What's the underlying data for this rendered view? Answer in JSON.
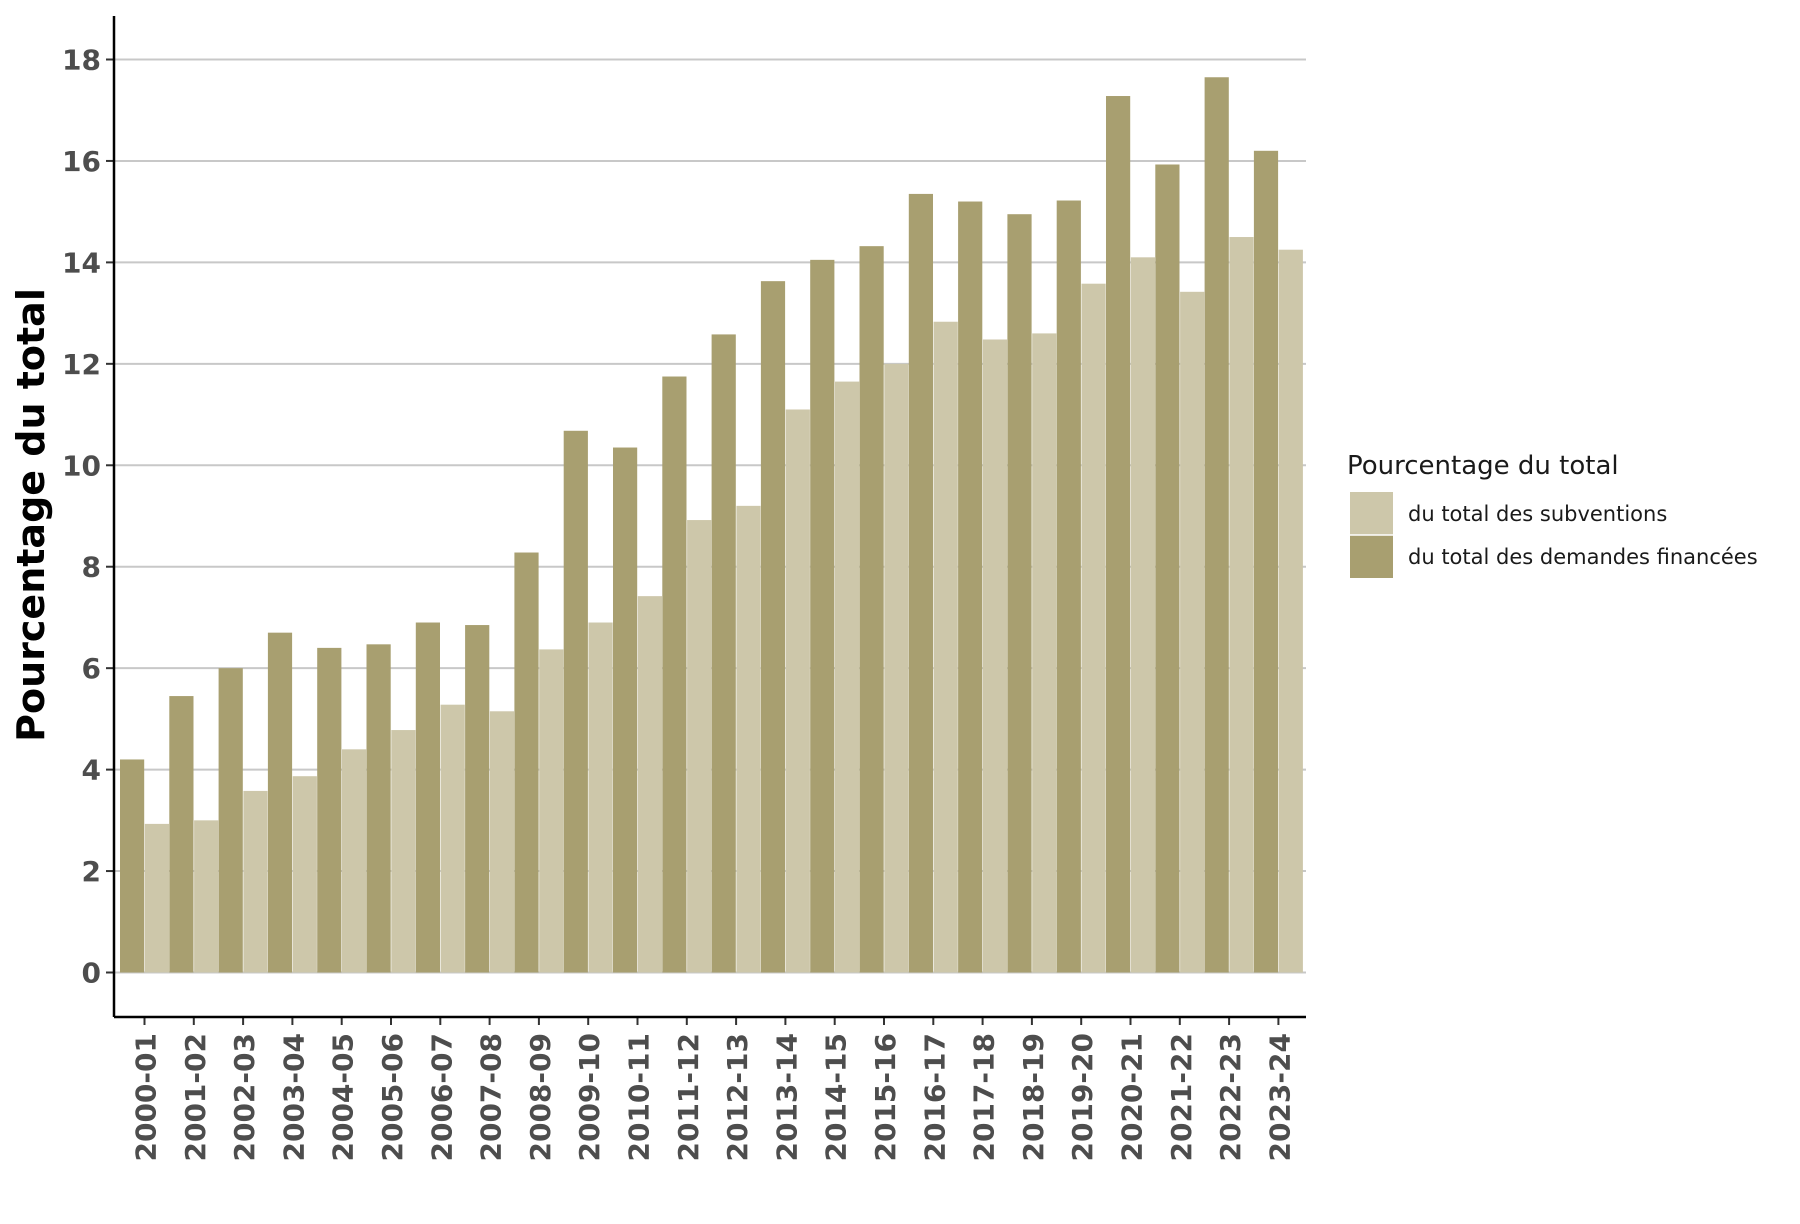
{
  "chart_data": {
    "type": "bar",
    "title": "",
    "xlabel": "",
    "ylabel": "Pourcentage du total",
    "ylim": [
      -0.9,
      18.9
    ],
    "yticks": [
      0,
      2,
      4,
      6,
      8,
      10,
      12,
      14,
      16,
      18
    ],
    "grid": "horizontal",
    "legend": {
      "title": "Pourcentage du total",
      "position": "right"
    },
    "categories": [
      "2000-01",
      "2001-02",
      "2002-03",
      "2003-04",
      "2004-05",
      "2005-06",
      "2006-07",
      "2007-08",
      "2008-09",
      "2009-10",
      "2010-11",
      "2011-12",
      "2012-13",
      "2013-14",
      "2014-15",
      "2015-16",
      "2016-17",
      "2017-18",
      "2018-19",
      "2019-20",
      "2020-21",
      "2021-22",
      "2022-23",
      "2023-24"
    ],
    "series": [
      {
        "name": "du total des demandes financées",
        "color": "#a89f70",
        "values": [
          4.2,
          5.45,
          6.0,
          6.7,
          6.4,
          6.47,
          6.9,
          6.85,
          8.28,
          10.68,
          10.35,
          11.75,
          12.58,
          13.63,
          14.05,
          14.32,
          15.35,
          15.2,
          14.95,
          15.22,
          17.28,
          15.93,
          17.65,
          16.2
        ]
      },
      {
        "name": "du total des subventions",
        "color": "#cdc7aa",
        "values": [
          2.93,
          3.0,
          3.58,
          3.87,
          4.4,
          4.78,
          5.28,
          5.15,
          6.37,
          6.9,
          7.42,
          8.92,
          9.2,
          11.1,
          11.65,
          12.0,
          12.83,
          12.48,
          12.6,
          13.58,
          14.1,
          13.42,
          14.5,
          14.25
        ]
      }
    ]
  }
}
